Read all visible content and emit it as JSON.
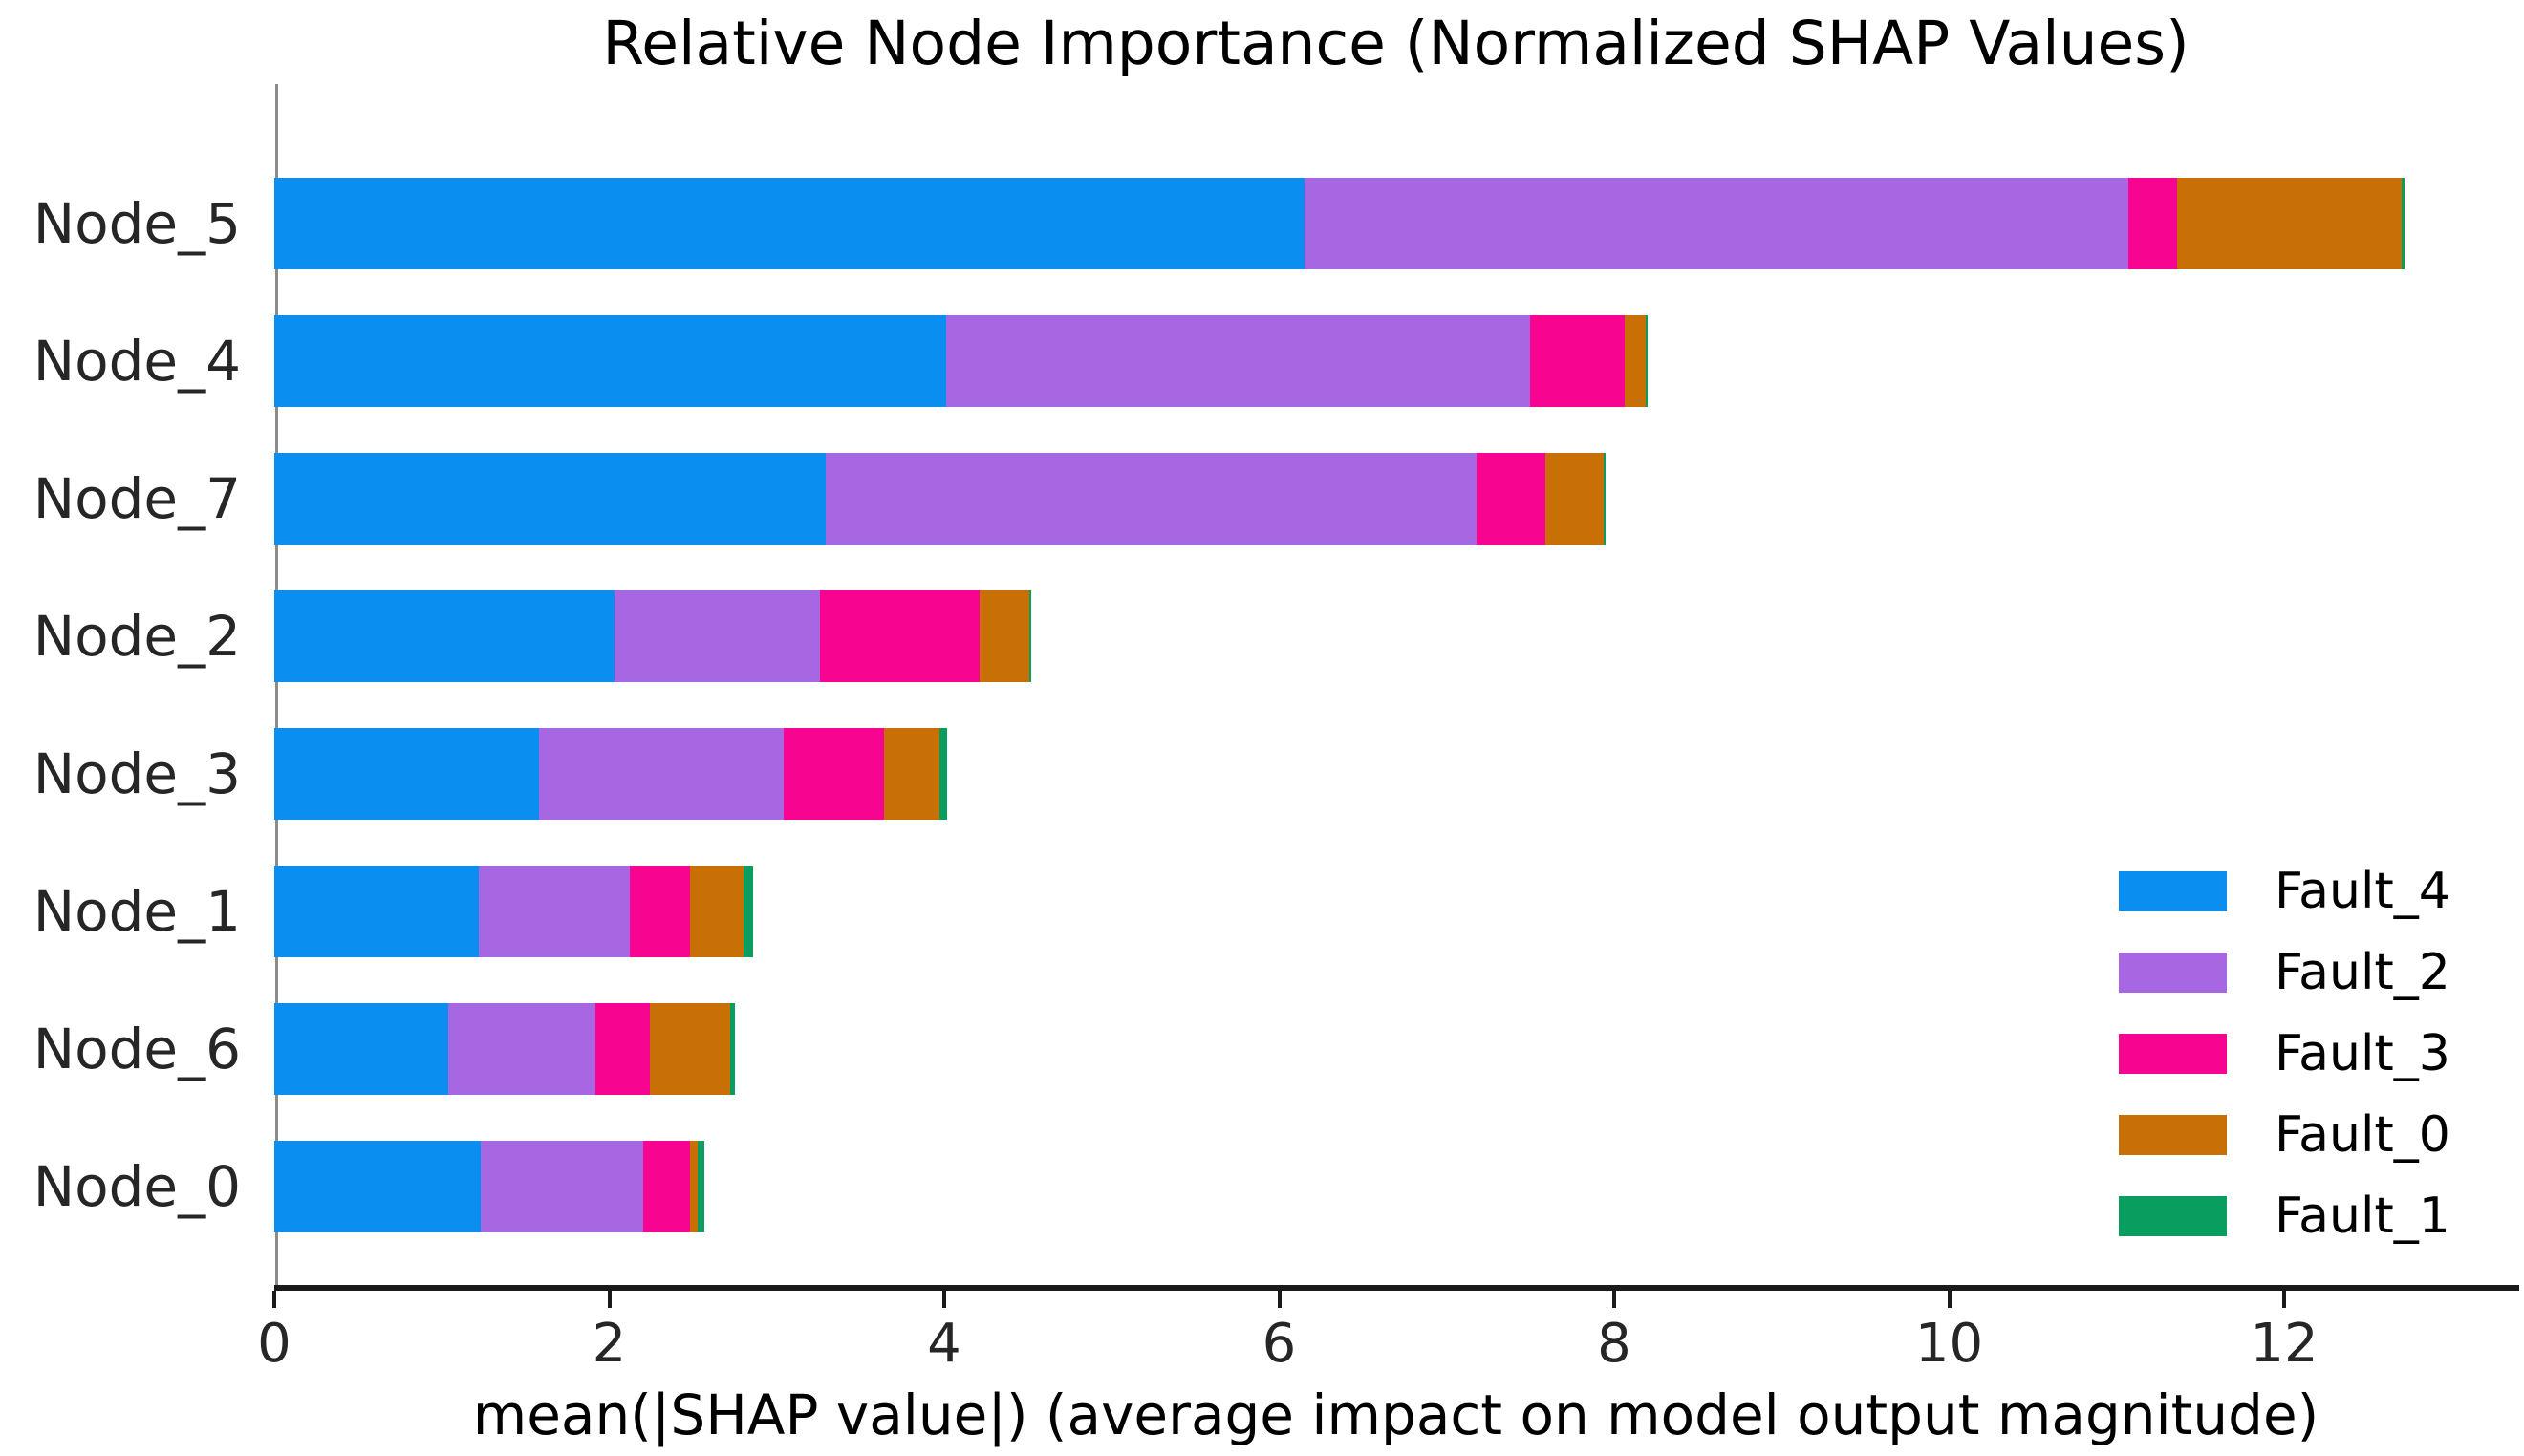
{
  "chart_data": {
    "type": "bar",
    "orientation": "horizontal",
    "stacked": true,
    "title": "Relative Node Importance (Normalized SHAP Values)",
    "xlabel": "mean(|SHAP value|) (average impact on model output magnitude)",
    "ylabel": "",
    "categories": [
      "Node_5",
      "Node_4",
      "Node_7",
      "Node_2",
      "Node_3",
      "Node_1",
      "Node_6",
      "Node_0"
    ],
    "series": [
      {
        "name": "Fault_4",
        "color": "#0a8ff1",
        "values": [
          6.15,
          4.01,
          3.29,
          2.03,
          1.58,
          1.22,
          1.04,
          1.23
        ]
      },
      {
        "name": "Fault_2",
        "color": "#a767e2",
        "values": [
          4.92,
          3.49,
          3.89,
          1.23,
          1.46,
          0.9,
          0.88,
          0.97
        ]
      },
      {
        "name": "Fault_3",
        "color": "#f70490",
        "values": [
          0.29,
          0.56,
          0.41,
          0.95,
          0.6,
          0.36,
          0.32,
          0.28
        ]
      },
      {
        "name": "Fault_0",
        "color": "#c86f05",
        "values": [
          1.34,
          0.13,
          0.35,
          0.3,
          0.33,
          0.32,
          0.48,
          0.05
        ]
      },
      {
        "name": "Fault_1",
        "color": "#0a9d60",
        "values": [
          0.02,
          0.01,
          0.01,
          0.01,
          0.05,
          0.06,
          0.03,
          0.04
        ]
      }
    ],
    "bar_totals": [
      12.72,
      8.2,
      7.95,
      4.52,
      4.02,
      2.86,
      2.75,
      2.57
    ],
    "x_ticks": [
      "0",
      "2",
      "4",
      "6",
      "8",
      "10",
      "12"
    ],
    "x_tick_values": [
      0,
      2,
      4,
      6,
      8,
      10,
      12
    ],
    "xlim": [
      0,
      13.4
    ],
    "grid": false,
    "legend_position": "lower right",
    "colors": {
      "axis_line": "#1a1a1a",
      "left_spine": "#8c8c8c",
      "tick_text": "#262626",
      "title_text": "#000000"
    }
  }
}
